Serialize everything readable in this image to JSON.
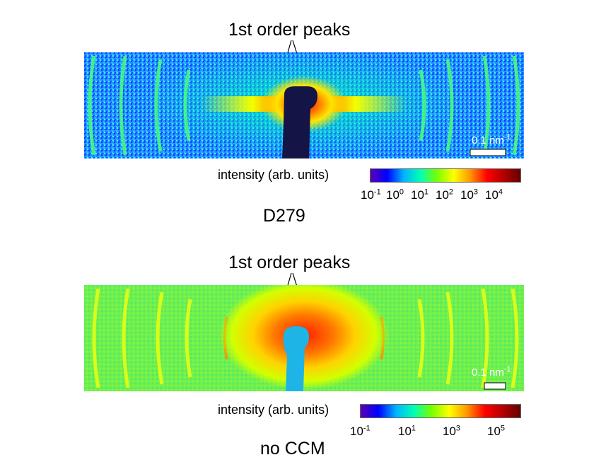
{
  "panel_top": {
    "annotation": "1st order peaks",
    "scale_bar": {
      "value": "0.1 nm",
      "exponent": "-1"
    },
    "colorbar": {
      "label": "intensity (arb. units)",
      "colors": [
        "#5a00b4",
        "#0000ff",
        "#00b4ff",
        "#00ffb4",
        "#78ff00",
        "#ffff00",
        "#ff9600",
        "#ff0000",
        "#b40000",
        "#640000"
      ],
      "ticks": [
        {
          "base": "10",
          "exp": "-1"
        },
        {
          "base": "10",
          "exp": "0"
        },
        {
          "base": "10",
          "exp": "1"
        },
        {
          "base": "10",
          "exp": "2"
        },
        {
          "base": "10",
          "exp": "3"
        },
        {
          "base": "10",
          "exp": "4"
        }
      ]
    },
    "sample": "D279"
  },
  "panel_bottom": {
    "annotation": "1st order peaks",
    "scale_bar": {
      "value": "0.1 nm",
      "exponent": "-1"
    },
    "colorbar": {
      "label": "intensity (arb. units)",
      "colors": [
        "#5a00b4",
        "#0000ff",
        "#00b4ff",
        "#00ffb4",
        "#78ff00",
        "#ffff00",
        "#ff9600",
        "#ff0000",
        "#b40000",
        "#640000"
      ],
      "ticks": [
        {
          "base": "10",
          "exp": "-1"
        },
        {
          "base": "10",
          "exp": "1"
        },
        {
          "base": "10",
          "exp": "3"
        },
        {
          "base": "10",
          "exp": "5"
        }
      ]
    },
    "sample": "no CCM"
  }
}
